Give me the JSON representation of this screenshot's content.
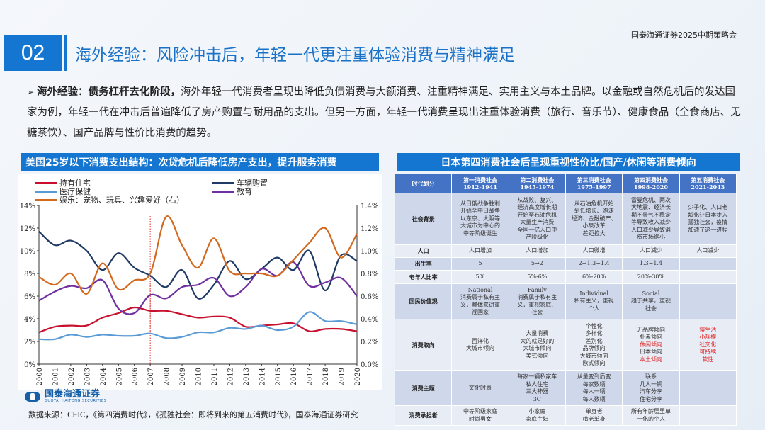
{
  "header": {
    "conference": "国泰海通证券2025中期策略会",
    "section_number": "02",
    "title": "海外经验：风险冲击后，年轻一代更注重体验消费与精神满足"
  },
  "body": {
    "lead": "海外经验：债务杠杆去化阶段，",
    "text": "海外年轻一代消费者呈现出降低负债消费与大额消费、注重精神满足、实用主义与本土品牌。以金融或自然危机后的发达国家为例，年轻一代在冲击后普遍降低了房产购置与耐用品的支出。但另一方面，年轻一代消费呈现出注重体验消费（旅行、音乐节）、健康食品（全食商店、无糖茶饮）、国产品牌与性价比消费的趋势。"
  },
  "left_panel": {
    "title": "美国25岁以下消费支出结构：次贷危机后降低房产支出，提升服务消费"
  },
  "right_panel": {
    "title": "日本第四消费社会后呈现重视性价比/国产/休闲等消费倾向"
  },
  "footer": {
    "logo_cn": "国泰海通证券",
    "logo_en": "GUOTAI HAITONG SECURITIES",
    "source": "数据来源：CEIC，《第四消费时代》，《孤独社会：即将到来的第五消费时代》，国泰海通证券研究"
  },
  "chart_data": {
    "type": "line",
    "grid": false,
    "legend_placement": "top",
    "x": [
      "2000",
      "2001",
      "2002",
      "2003",
      "2004",
      "2005",
      "2006",
      "2007",
      "2008",
      "2009",
      "2010",
      "2011",
      "2012",
      "2013",
      "2014",
      "2015",
      "2016",
      "2017",
      "2018",
      "2019",
      "2020"
    ],
    "y_left": {
      "range": [
        0,
        14
      ],
      "ticks": [
        "0%",
        "2%",
        "4%",
        "6%",
        "8%",
        "10%",
        "12%",
        "14%"
      ]
    },
    "y_right": {
      "range": [
        0,
        1.4
      ],
      "ticks": [
        "0.0%",
        "0.2%",
        "0.4%",
        "0.6%",
        "0.8%",
        "1.0%",
        "1.2%",
        "1.4%"
      ]
    },
    "marker_line": {
      "x": "2007",
      "color": "#e02020",
      "style": "dashed"
    },
    "series": [
      {
        "name": "持有住宅",
        "color": "#c8102e",
        "axis": "left",
        "values": [
          2.8,
          3.3,
          3.4,
          3.4,
          4.1,
          4.5,
          5.0,
          4.7,
          4.7,
          4.4,
          4.1,
          4.2,
          4.1,
          3.3,
          3.4,
          3.5,
          3.6,
          2.9,
          3.1,
          3.1,
          2.9
        ]
      },
      {
        "name": "车辆购置",
        "color": "#1f3a64",
        "axis": "left",
        "values": [
          11.7,
          10.5,
          10.9,
          10.0,
          8.3,
          9.8,
          8.5,
          7.8,
          6.8,
          8.3,
          5.8,
          7.0,
          9.1,
          7.5,
          8.4,
          9.4,
          8.3,
          10.0,
          6.5,
          9.6,
          9.1
        ]
      },
      {
        "name": "医疗保健",
        "color": "#5b9bd5",
        "axis": "left",
        "values": [
          2.2,
          2.2,
          2.6,
          2.4,
          2.6,
          2.5,
          2.5,
          2.7,
          2.3,
          2.4,
          2.8,
          2.8,
          3.2,
          3.1,
          3.4,
          3.0,
          3.3,
          4.6,
          3.8,
          3.8,
          3.5
        ]
      },
      {
        "name": "教育",
        "color": "#7030a0",
        "axis": "left",
        "values": [
          5.6,
          6.4,
          6.9,
          6.7,
          7.4,
          4.9,
          4.5,
          6.1,
          5.8,
          6.8,
          7.0,
          7.6,
          6.0,
          6.8,
          8.4,
          7.8,
          9.0,
          6.9,
          7.2,
          7.6,
          6.0
        ]
      },
      {
        "name": "娱乐：宠物、玩具、兴趣爱好（右）",
        "color": "#d2691e",
        "axis": "right",
        "values": [
          0.77,
          0.7,
          0.8,
          0.62,
          0.89,
          0.66,
          0.74,
          0.8,
          1.3,
          1.05,
          0.85,
          1.11,
          0.82,
          0.8,
          0.8,
          0.78,
          0.92,
          1.07,
          1.2,
          0.94,
          1.15
        ]
      }
    ]
  },
  "table": {
    "header": [
      "时代划分",
      "第一消费社会\n1912-1941",
      "第二消费社会\n1945-1974",
      "第三消费社会\n1975-1997",
      "第四消费社会\n1998-2020",
      "第五消费社会\n2021-2043"
    ],
    "rows": [
      {
        "label": "社会背景",
        "cells": [
          "从日俄战争胜利\n开始至中日战争\n以东京、大阪等\n大城市为中心的\n中等阶级诞生",
          "从战败、复兴、\n经济高度增长期\n开始至石油危机\n大量生产消费\n全国一亿人口中\n产阶级化",
          "从石油危机开始\n到低增长、泡沫\n经济、金融破产、\n小泉改革\n差距拉大",
          "雷曼危机、两次\n大地震、经济长\n期不景气不稳定\n等导致收入减少\n人口减少导致消\n费市场缩小",
          "少子化、人口老\n龄化让日本步入\n孤独社会，疫情\n加速了这一进程"
        ]
      },
      {
        "label": "人口",
        "cells": [
          "人口增加",
          "人口增加",
          "人口微增",
          "人口减少",
          "人口减少"
        ]
      },
      {
        "label": "出生率",
        "cells": [
          "5",
          "5→2",
          "2→1.3~1.4",
          "1.3~1.4",
          ""
        ]
      },
      {
        "label": "老年人比率",
        "cells": [
          "5%",
          "5%-6%",
          "6%-20%",
          "20%-30%",
          ""
        ]
      },
      {
        "label": "国民价值观",
        "cells": [
          "National\n消费属于私有主\n义，整体来讲重\n视国家",
          "Family\n消费属于私有主\n义，重视家庭、\n社会",
          "Individual\n私有主义，重视\n个人",
          "Social\n趋于共享，重视\n社会",
          ""
        ]
      },
      {
        "label": "消费取向",
        "cells": [
          "西洋化\n大城市倾向",
          "大量消费\n大的就是好的\n大城市倾向\n美式倾向",
          "个性化\n多样化\n差别化\n品牌倾向\n大城市倾向\n欧式倾向",
          "无品牌倾向\n朴素倾向\n休闲倾向\n日本倾向\n本土倾向",
          "慢生活\n小规模\n社交化\n可持续\n软性"
        ]
      },
      {
        "label": "消费主题",
        "cells": [
          "文化时尚",
          "每家一辆私家车\n私人住宅\n三大神器\n3C",
          "从量变到质变\n每家数辆\n每人一辆\n每人数辆",
          "联系\n几人一辆\n汽车分享\n住宅分享",
          ""
        ]
      },
      {
        "label": "消费承担者",
        "cells": [
          "中等阶级家庭\n时尚男女",
          "小家庭\n家庭主妇",
          "单身者\n啃老单身",
          "所有年龄层里单\n一化的个人",
          ""
        ]
      }
    ],
    "highlight_color": "#e02020",
    "highlights": [
      "休闲倾向",
      "本土倾向",
      "慢生活",
      "小规模",
      "社交化",
      "可持续",
      "软性"
    ]
  }
}
